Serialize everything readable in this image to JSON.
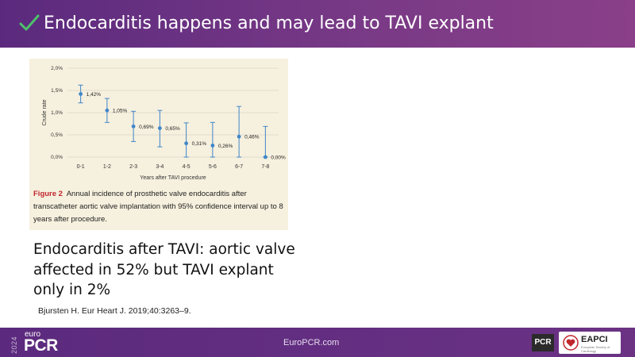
{
  "slide": {
    "title": "Endocarditis happens and may lead to TAVI explant"
  },
  "figure": {
    "caption_label": "Figure 2",
    "caption_text": "Annual incidence of prosthetic valve endocarditis after transcatheter aortic valve implantation with 95% confidence interval up to 8 years after procedure."
  },
  "chart_data": {
    "type": "scatter",
    "categories": [
      "0-1",
      "1-2",
      "2-3",
      "3-4",
      "4-5",
      "5-6",
      "6-7",
      "7-8"
    ],
    "values": [
      1.42,
      1.05,
      0.69,
      0.65,
      0.31,
      0.26,
      0.46,
      0.0
    ],
    "value_labels": [
      "1,42%",
      "1,05%",
      "0,69%",
      "0,65%",
      "0,31%",
      "0,26%",
      "0,46%",
      "0,00%"
    ],
    "ci_lower": [
      1.22,
      0.78,
      0.35,
      0.23,
      0.0,
      0.0,
      0.0,
      0.0
    ],
    "ci_upper": [
      1.62,
      1.32,
      1.03,
      1.05,
      0.77,
      0.78,
      1.14,
      0.69
    ],
    "ylim": [
      0,
      2.0
    ],
    "yticks": [
      0,
      0.5,
      1.0,
      1.5,
      2.0
    ],
    "ytick_labels": [
      "0,0%",
      "0,5%",
      "1,0%",
      "1,5%",
      "2,0%"
    ],
    "xlabel": "Years after TAVI procedure",
    "ylabel": "Crude rate",
    "grid": true,
    "color": "#3f86c8"
  },
  "main_text": "Endocarditis after TAVI: aortic valve affected in 52% but TAVI explant only in 2%",
  "citation": "Bjursten H. Eur Heart J. 2019;40:3263–9.",
  "footer": {
    "year": "2024",
    "logo_small": "euro",
    "logo_main": "PCR",
    "url": "EuroPCR.com",
    "badge_pcr": "PCR",
    "badge_eapci": "EAPCI",
    "badge_eapci_sub": "European Society of Cardiology"
  },
  "colors": {
    "header": "#6b3284",
    "check": "#4cc26a",
    "caption_label": "#c0272d"
  }
}
